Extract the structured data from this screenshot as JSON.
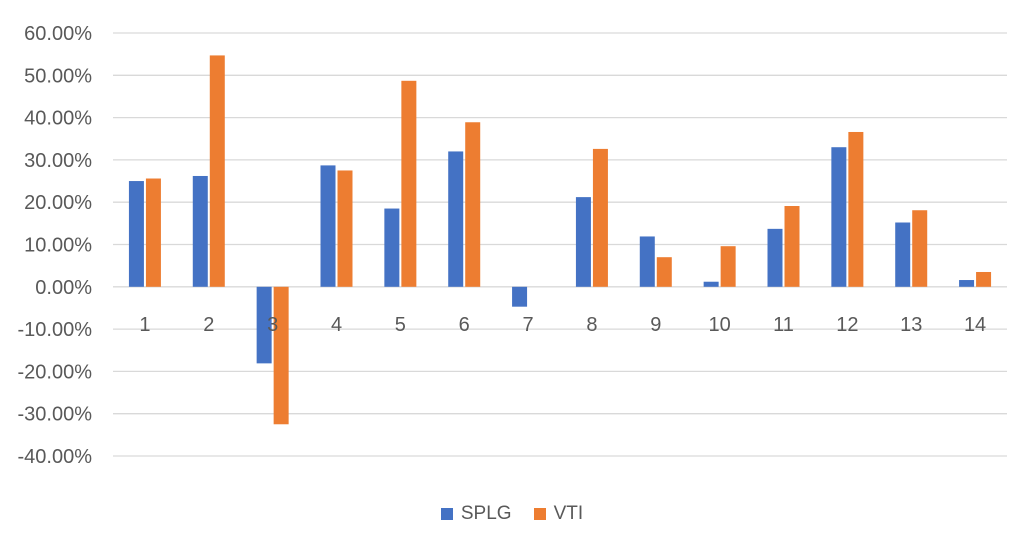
{
  "chart_data": {
    "type": "bar",
    "categories": [
      "1",
      "2",
      "3",
      "4",
      "5",
      "6",
      "7",
      "8",
      "9",
      "10",
      "11",
      "12",
      "13",
      "14"
    ],
    "series": [
      {
        "name": "SPLG",
        "color": "#4472C4",
        "values": [
          25.0,
          26.2,
          -18.1,
          28.7,
          18.5,
          32.0,
          -4.7,
          21.2,
          11.9,
          1.2,
          13.7,
          33.0,
          15.2,
          1.6
        ]
      },
      {
        "name": "VTI",
        "color": "#ED7D31",
        "values": [
          25.6,
          54.7,
          -32.5,
          27.5,
          48.7,
          38.9,
          null,
          32.6,
          7.0,
          9.6,
          19.1,
          36.6,
          18.1,
          3.5
        ]
      }
    ],
    "y_ticks": [
      "60.00%",
      "50.00%",
      "40.00%",
      "30.00%",
      "20.00%",
      "10.00%",
      "0.00%",
      "-10.00%",
      "-20.00%",
      "-30.00%",
      "-40.00%"
    ],
    "ylim": [
      -40,
      60
    ],
    "ytick_step": 10,
    "grid": true,
    "legend_position": "bottom"
  }
}
